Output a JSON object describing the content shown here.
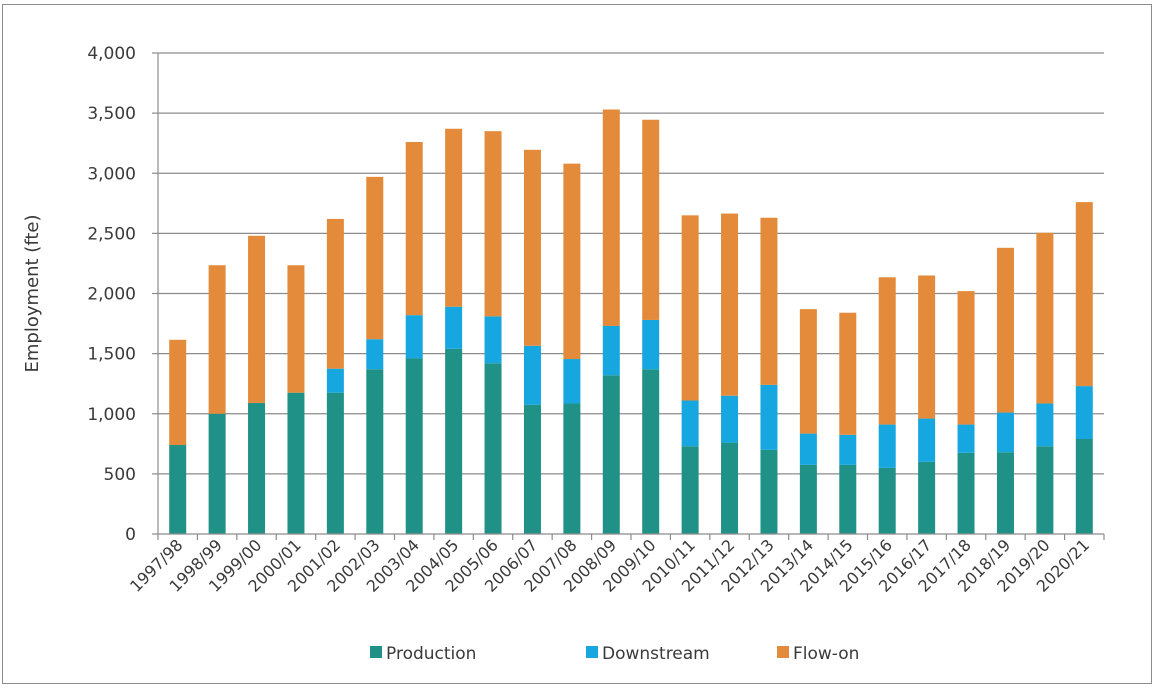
{
  "chart_data": {
    "type": "bar",
    "stacked": true,
    "title": "",
    "xlabel": "",
    "ylabel": "Employment  (fte)",
    "ylim": [
      0,
      4000
    ],
    "yticks": [
      0,
      500,
      1000,
      1500,
      2000,
      2500,
      3000,
      3500,
      4000
    ],
    "ytick_labels": [
      "0",
      "500",
      "1,000",
      "1,500",
      "2,000",
      "2,500",
      "3,000",
      "3,500",
      "4,000"
    ],
    "grid": true,
    "legend_position": "bottom",
    "categories": [
      "1997/98",
      "1998/99",
      "1999/00",
      "2000/01",
      "2001/02",
      "2002/03",
      "2003/04",
      "2004/05",
      "2005/06",
      "2006/07",
      "2007/08",
      "2008/09",
      "2009/10",
      "2010/11",
      "2011/12",
      "2012/13",
      "2013/14",
      "2014/15",
      "2015/16",
      "2016/17",
      "2017/18",
      "2018/19",
      "2019/20",
      "2020/21"
    ],
    "series": [
      {
        "name": "Production",
        "color": "#1f9187",
        "values": [
          740,
          1000,
          1090,
          1175,
          1175,
          1370,
          1460,
          1540,
          1420,
          1075,
          1085,
          1320,
          1370,
          730,
          760,
          700,
          575,
          575,
          550,
          600,
          675,
          680,
          730,
          790
        ]
      },
      {
        "name": "Downstream",
        "color": "#16a7e0",
        "values": [
          0,
          0,
          0,
          0,
          200,
          250,
          360,
          350,
          390,
          490,
          370,
          410,
          410,
          380,
          390,
          540,
          260,
          250,
          360,
          360,
          235,
          330,
          355,
          440
        ]
      },
      {
        "name": "Flow-on",
        "color": "#e38b3b",
        "values": [
          875,
          1235,
          1390,
          1060,
          1245,
          1350,
          1440,
          1480,
          1540,
          1630,
          1625,
          1800,
          1665,
          1540,
          1515,
          1390,
          1035,
          1015,
          1225,
          1190,
          1110,
          1370,
          1420,
          1530
        ]
      }
    ]
  }
}
